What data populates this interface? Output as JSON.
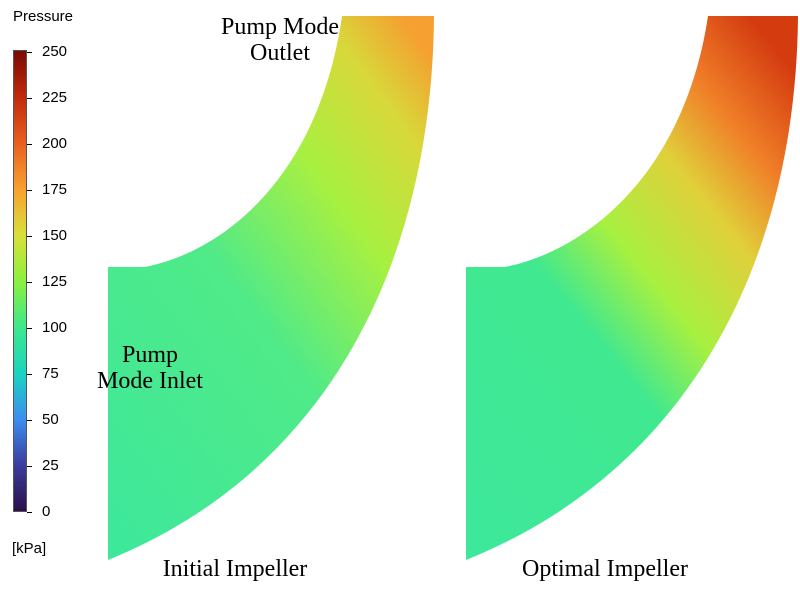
{
  "colorbar": {
    "title": "Pressure",
    "unit": "[kPa]",
    "ticks": [
      "250",
      "225",
      "200",
      "175",
      "150",
      "125",
      "100",
      "75",
      "50",
      "25",
      "0"
    ],
    "range": [
      0,
      250
    ],
    "colormap": [
      "#2b0f4a",
      "#3b3c9e",
      "#3c8ef0",
      "#1bd4c0",
      "#3ee88a",
      "#8cf040",
      "#d8e03a",
      "#f8a030",
      "#e86020",
      "#c02a0c",
      "#7a0a04"
    ]
  },
  "annotations": {
    "outlet": "Pump Mode Outlet",
    "outlet_line1": "Pump Mode",
    "outlet_line2": "Outlet",
    "inlet_line1": "Pump",
    "inlet_line2": "Mode Inlet"
  },
  "panels": [
    {
      "label": "Initial Impeller",
      "colors": {
        "inlet": "#3ee89a",
        "mid": "#a8f040",
        "outlet": "#f5a030"
      }
    },
    {
      "label": "Optimal Impeller",
      "colors": {
        "inlet": "#3ee89a",
        "mid": "#c8e840",
        "outlet": "#d84010"
      }
    }
  ]
}
